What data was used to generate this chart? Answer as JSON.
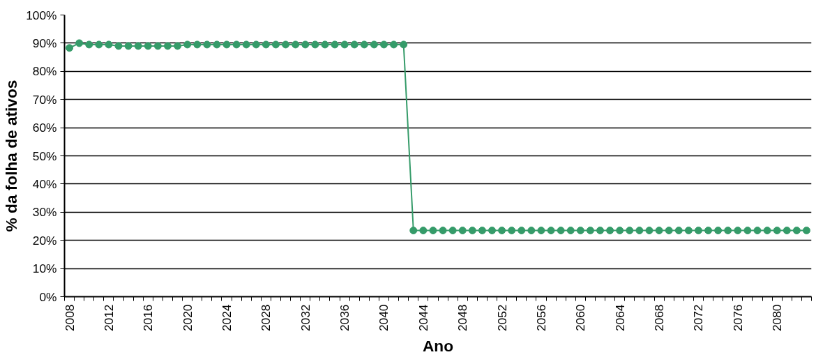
{
  "chart_data": {
    "type": "line",
    "xlabel": "Ano",
    "ylabel": "% da folha de ativos",
    "categories": [
      "2008",
      null,
      null,
      null,
      "2012",
      null,
      null,
      null,
      "2016",
      null,
      null,
      null,
      "2020",
      null,
      null,
      null,
      "2024",
      null,
      null,
      null,
      "2028",
      null,
      null,
      null,
      "2032",
      null,
      null,
      null,
      "2036",
      null,
      null,
      null,
      "2040",
      null,
      null,
      null,
      "2044",
      null,
      null,
      null,
      "2048",
      null,
      null,
      null,
      "2052",
      null,
      null,
      null,
      "2056",
      null,
      null,
      null,
      "2060",
      null,
      null,
      null,
      "2064",
      null,
      null,
      null,
      "2068",
      null,
      null,
      null,
      "2072",
      null,
      null,
      null,
      "2076",
      null,
      null,
      null,
      "2080",
      null,
      null,
      null
    ],
    "series": [
      {
        "color": "#359b69",
        "values": [
          88.3,
          90.0,
          89.5,
          89.5,
          89.5,
          89.0,
          89.0,
          89.0,
          89.0,
          89.0,
          89.0,
          89.0,
          89.5,
          89.5,
          89.5,
          89.5,
          89.5,
          89.5,
          89.5,
          89.5,
          89.5,
          89.5,
          89.5,
          89.5,
          89.5,
          89.5,
          89.5,
          89.5,
          89.5,
          89.5,
          89.5,
          89.5,
          89.5,
          89.5,
          89.5,
          23.5,
          23.5,
          23.5,
          23.5,
          23.5,
          23.5,
          23.5,
          23.5,
          23.5,
          23.5,
          23.5,
          23.5,
          23.5,
          23.5,
          23.5,
          23.5,
          23.5,
          23.5,
          23.5,
          23.5,
          23.5,
          23.5,
          23.5,
          23.5,
          23.5,
          23.5,
          23.5,
          23.5,
          23.5,
          23.5,
          23.5,
          23.5,
          23.5,
          23.5,
          23.5,
          23.5,
          23.5,
          23.5,
          23.5,
          23.5,
          23.5
        ]
      }
    ],
    "ylim": [
      0,
      100
    ],
    "yticks": [
      {
        "value": 0,
        "label": "0%"
      },
      {
        "value": 10,
        "label": "10%"
      },
      {
        "value": 20,
        "label": "20%"
      },
      {
        "value": 30,
        "label": "30%"
      },
      {
        "value": 40,
        "label": "40%"
      },
      {
        "value": 50,
        "label": "50%"
      },
      {
        "value": 60,
        "label": "60%"
      },
      {
        "value": 70,
        "label": "70%"
      },
      {
        "value": 80,
        "label": "80%"
      },
      {
        "value": 90,
        "label": "90%"
      },
      {
        "value": 100,
        "label": "100%"
      }
    ],
    "grid": "y",
    "marker": "circle",
    "line_style": "solid"
  }
}
